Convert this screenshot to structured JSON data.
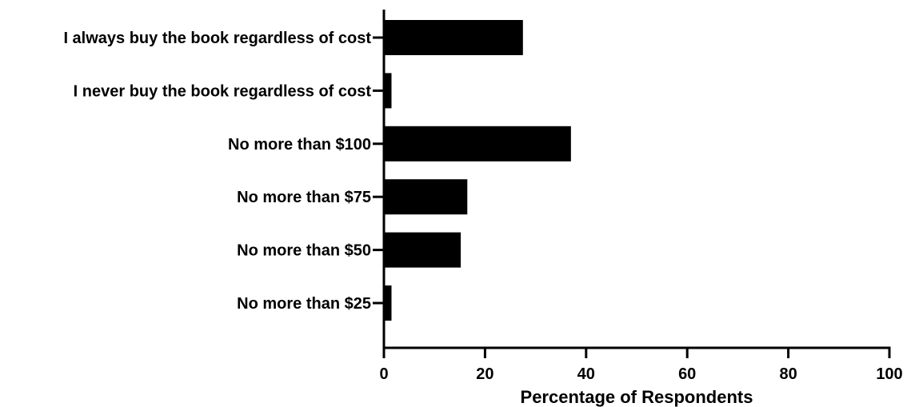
{
  "chart_data": {
    "type": "bar",
    "orientation": "horizontal",
    "categories": [
      "I always buy the book regardless of cost",
      "I never buy the book regardless of cost",
      "No more than $100",
      "No more than $75",
      "No more than $50",
      "No more than $25"
    ],
    "values": [
      27.5,
      1.5,
      37,
      16.5,
      15.2,
      1.5
    ],
    "xlabel": "Percentage of Respondents",
    "ylabel": "",
    "xlim": [
      0,
      100
    ],
    "xticks": [
      "0",
      "20",
      "40",
      "60",
      "80",
      "100"
    ],
    "bar_color": "#000000",
    "grid": false,
    "legend": "none"
  }
}
